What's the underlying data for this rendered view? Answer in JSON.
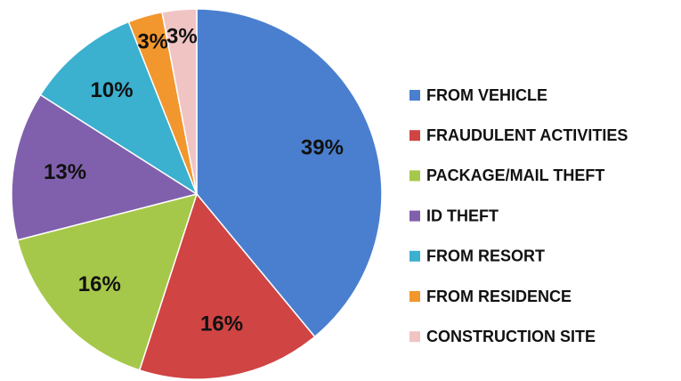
{
  "chart_data": {
    "type": "pie",
    "categories": [
      "FROM VEHICLE",
      "FRAUDULENT ACTIVITIES",
      "PACKAGE/MAIL THEFT",
      "ID THEFT",
      "FROM RESORT",
      "FROM RESIDENCE",
      "CONSTRUCTION SITE"
    ],
    "values": [
      39,
      16,
      16,
      13,
      10,
      3,
      3
    ],
    "value_labels": [
      "39%",
      "16%",
      "16%",
      "13%",
      "10%",
      "3%",
      "3%"
    ],
    "colors": [
      "#4a7fcf",
      "#d04444",
      "#a6c84a",
      "#8060ac",
      "#3bb0cf",
      "#f2962e",
      "#f1c4c4"
    ],
    "legend": "right"
  }
}
